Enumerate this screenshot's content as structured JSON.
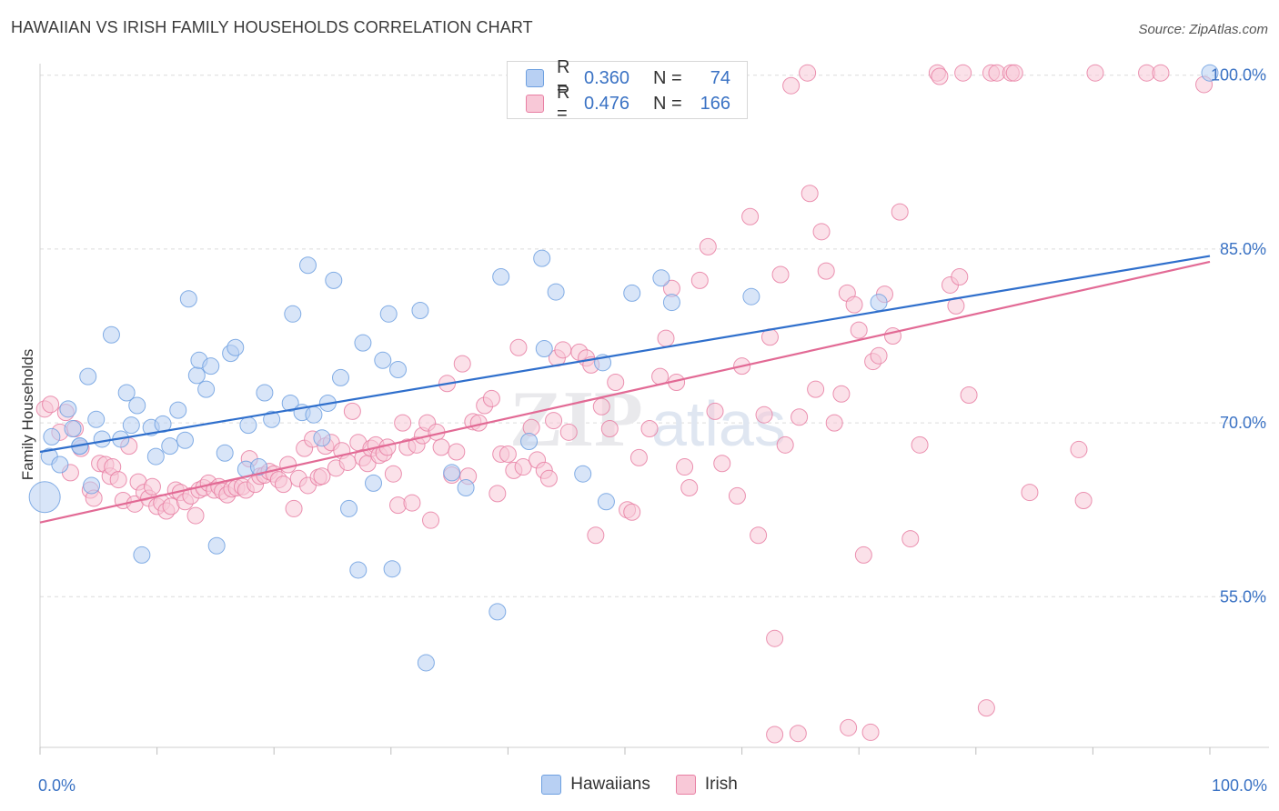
{
  "header": {
    "title": "HAWAIIAN VS IRISH FAMILY HOUSEHOLDS CORRELATION CHART",
    "source": "Source: ZipAtlas.com"
  },
  "watermark": {
    "part1": "ZIP",
    "part2": "atlas"
  },
  "legend": {
    "rows": [
      {
        "r_label": "R =",
        "r_value": "0.360",
        "n_label": "N =",
        "n_value": "74",
        "color": "#6ea0e0",
        "fill": "#b8d0f3"
      },
      {
        "r_label": "R =",
        "r_value": "0.476",
        "n_label": "N =",
        "n_value": "166",
        "color": "#e87fa3",
        "fill": "#f8c8d7"
      }
    ]
  },
  "bottom_legend": [
    {
      "label": "Hawaiians",
      "color": "#6ea0e0",
      "fill": "#b8d0f3"
    },
    {
      "label": "Irish",
      "color": "#e87fa3",
      "fill": "#f8c8d7"
    }
  ],
  "chart_data": {
    "type": "scatter",
    "title": "HAWAIIAN VS IRISH FAMILY HOUSEHOLDS CORRELATION CHART",
    "xlabel": "",
    "ylabel": "Family Households",
    "xlim": [
      0,
      100
    ],
    "ylim": [
      42,
      101
    ],
    "x_tick_labels": [
      "0.0%",
      "100.0%"
    ],
    "y_tick_labels": [
      "55.0%",
      "70.0%",
      "85.0%",
      "100.0%"
    ],
    "y_ticks": [
      55,
      70,
      85,
      100
    ],
    "grid": true,
    "legend_position": "top-center",
    "series": [
      {
        "name": "Hawaiians",
        "color": "#6ea0e0",
        "fill": "#b8d0f3",
        "trend": [
          [
            0,
            67.5
          ],
          [
            100,
            84.4
          ]
        ],
        "points": [
          [
            1,
            68.8
          ],
          [
            0.8,
            67.1
          ],
          [
            2.4,
            71.2
          ],
          [
            2.8,
            69.5
          ],
          [
            3.4,
            68.0
          ],
          [
            4.1,
            74.0
          ],
          [
            4.8,
            70.3
          ],
          [
            5.3,
            68.6
          ],
          [
            6.1,
            77.6
          ],
          [
            6.9,
            68.6
          ],
          [
            7.4,
            72.6
          ],
          [
            7.8,
            69.8
          ],
          [
            8.3,
            71.5
          ],
          [
            8.7,
            58.6
          ],
          [
            9.5,
            69.6
          ],
          [
            9.9,
            67.1
          ],
          [
            10.5,
            69.9
          ],
          [
            11.1,
            68.0
          ],
          [
            11.8,
            71.1
          ],
          [
            12.7,
            80.7
          ],
          [
            13.4,
            74.1
          ],
          [
            13.6,
            75.4
          ],
          [
            14.2,
            72.9
          ],
          [
            14.6,
            74.9
          ],
          [
            15.1,
            59.4
          ],
          [
            15.8,
            67.4
          ],
          [
            16.3,
            76.0
          ],
          [
            16.7,
            76.5
          ],
          [
            17.6,
            66.0
          ],
          [
            17.8,
            69.8
          ],
          [
            18.7,
            66.2
          ],
          [
            19.2,
            72.6
          ],
          [
            19.8,
            70.3
          ],
          [
            21.4,
            71.7
          ],
          [
            21.6,
            79.4
          ],
          [
            22.4,
            70.9
          ],
          [
            22.9,
            83.6
          ],
          [
            23.4,
            70.7
          ],
          [
            24.1,
            68.7
          ],
          [
            24.6,
            71.7
          ],
          [
            25.1,
            82.3
          ],
          [
            25.7,
            73.9
          ],
          [
            26.4,
            62.6
          ],
          [
            27.2,
            57.3
          ],
          [
            27.6,
            76.9
          ],
          [
            28.5,
            64.8
          ],
          [
            29.3,
            75.4
          ],
          [
            29.8,
            79.4
          ],
          [
            30.1,
            57.4
          ],
          [
            30.6,
            74.6
          ],
          [
            32.5,
            79.7
          ],
          [
            33.0,
            49.3
          ],
          [
            35.2,
            65.7
          ],
          [
            36.4,
            64.4
          ],
          [
            39.1,
            53.7
          ],
          [
            39.4,
            82.6
          ],
          [
            41.8,
            68.4
          ],
          [
            42.9,
            84.2
          ],
          [
            43.1,
            76.4
          ],
          [
            44.1,
            81.3
          ],
          [
            46.4,
            65.6
          ],
          [
            48.4,
            63.2
          ],
          [
            48.1,
            75.2
          ],
          [
            50.6,
            81.2
          ],
          [
            53.1,
            82.5
          ],
          [
            54.0,
            80.4
          ],
          [
            60.8,
            80.9
          ],
          [
            71.7,
            80.4
          ],
          [
            1.7,
            66.4
          ],
          [
            0.4,
            63.6
          ],
          [
            12.4,
            68.5
          ],
          [
            4.4,
            64.6
          ],
          [
            3.4,
            68.0
          ],
          [
            100,
            100.2
          ]
        ]
      },
      {
        "name": "Irish",
        "color": "#e87fa3",
        "fill": "#f8c8d7",
        "trend": [
          [
            0,
            61.4
          ],
          [
            100,
            83.9
          ]
        ],
        "points": [
          [
            0.4,
            71.2
          ],
          [
            0.9,
            71.6
          ],
          [
            1.7,
            69.2
          ],
          [
            2.2,
            70.9
          ],
          [
            2.6,
            65.7
          ],
          [
            3.0,
            69.5
          ],
          [
            3.5,
            67.8
          ],
          [
            4.3,
            64.2
          ],
          [
            4.6,
            63.5
          ],
          [
            5.1,
            66.5
          ],
          [
            5.6,
            66.4
          ],
          [
            6.0,
            65.4
          ],
          [
            6.2,
            66.2
          ],
          [
            6.7,
            65.1
          ],
          [
            7.1,
            63.3
          ],
          [
            7.6,
            68.0
          ],
          [
            8.1,
            63.0
          ],
          [
            8.4,
            64.9
          ],
          [
            8.9,
            64.0
          ],
          [
            9.3,
            63.5
          ],
          [
            9.6,
            64.5
          ],
          [
            10.0,
            62.8
          ],
          [
            10.4,
            63.1
          ],
          [
            10.8,
            62.4
          ],
          [
            11.2,
            62.8
          ],
          [
            11.6,
            64.2
          ],
          [
            12.0,
            64.0
          ],
          [
            12.4,
            63.2
          ],
          [
            12.9,
            63.7
          ],
          [
            13.3,
            62.0
          ],
          [
            13.6,
            64.2
          ],
          [
            14.0,
            64.4
          ],
          [
            14.4,
            64.8
          ],
          [
            14.9,
            64.2
          ],
          [
            15.3,
            64.5
          ],
          [
            15.6,
            64.1
          ],
          [
            16.0,
            63.8
          ],
          [
            16.4,
            64.3
          ],
          [
            16.8,
            64.4
          ],
          [
            17.3,
            64.5
          ],
          [
            17.6,
            64.2
          ],
          [
            17.9,
            66.9
          ],
          [
            18.4,
            64.7
          ],
          [
            18.8,
            65.4
          ],
          [
            19.2,
            65.5
          ],
          [
            19.6,
            65.8
          ],
          [
            20.0,
            65.6
          ],
          [
            20.4,
            65.1
          ],
          [
            20.8,
            64.7
          ],
          [
            21.2,
            66.4
          ],
          [
            21.7,
            62.6
          ],
          [
            22.1,
            65.2
          ],
          [
            22.6,
            67.8
          ],
          [
            22.9,
            64.6
          ],
          [
            23.3,
            68.6
          ],
          [
            23.8,
            65.3
          ],
          [
            24.1,
            65.4
          ],
          [
            24.4,
            68.0
          ],
          [
            24.9,
            68.3
          ],
          [
            25.3,
            66.1
          ],
          [
            25.8,
            67.6
          ],
          [
            26.3,
            66.6
          ],
          [
            26.7,
            71.0
          ],
          [
            27.2,
            68.3
          ],
          [
            27.6,
            67.0
          ],
          [
            28.0,
            66.5
          ],
          [
            28.3,
            67.8
          ],
          [
            28.7,
            68.1
          ],
          [
            29.0,
            67.2
          ],
          [
            29.4,
            67.4
          ],
          [
            29.7,
            67.9
          ],
          [
            30.2,
            65.6
          ],
          [
            30.6,
            62.9
          ],
          [
            31.0,
            70.0
          ],
          [
            31.4,
            67.9
          ],
          [
            31.8,
            63.1
          ],
          [
            32.2,
            68.1
          ],
          [
            32.7,
            68.9
          ],
          [
            33.1,
            70.0
          ],
          [
            33.4,
            61.6
          ],
          [
            33.9,
            69.2
          ],
          [
            34.3,
            67.9
          ],
          [
            34.8,
            73.4
          ],
          [
            35.2,
            65.5
          ],
          [
            35.6,
            67.5
          ],
          [
            36.1,
            75.1
          ],
          [
            36.6,
            65.4
          ],
          [
            37.0,
            70.1
          ],
          [
            37.5,
            70.0
          ],
          [
            38.0,
            71.5
          ],
          [
            38.6,
            72.1
          ],
          [
            39.1,
            63.9
          ],
          [
            39.4,
            67.3
          ],
          [
            40.0,
            67.3
          ],
          [
            40.5,
            65.9
          ],
          [
            40.9,
            76.5
          ],
          [
            41.3,
            66.2
          ],
          [
            42.0,
            69.6
          ],
          [
            42.5,
            66.8
          ],
          [
            43.1,
            65.9
          ],
          [
            43.5,
            65.2
          ],
          [
            43.9,
            70.2
          ],
          [
            44.2,
            75.6
          ],
          [
            44.7,
            76.3
          ],
          [
            45.2,
            69.2
          ],
          [
            46.1,
            76.1
          ],
          [
            46.7,
            75.6
          ],
          [
            47.1,
            75.0
          ],
          [
            47.5,
            60.3
          ],
          [
            48.0,
            71.4
          ],
          [
            48.7,
            69.5
          ],
          [
            49.2,
            73.5
          ],
          [
            50.2,
            62.5
          ],
          [
            50.6,
            62.3
          ],
          [
            51.2,
            67.0
          ],
          [
            52.1,
            69.5
          ],
          [
            53.0,
            74.0
          ],
          [
            53.5,
            77.3
          ],
          [
            54.0,
            81.6
          ],
          [
            54.4,
            73.5
          ],
          [
            55.1,
            66.2
          ],
          [
            55.5,
            64.4
          ],
          [
            56.4,
            82.3
          ],
          [
            57.1,
            85.2
          ],
          [
            57.7,
            71.0
          ],
          [
            58.3,
            66.5
          ],
          [
            59.6,
            63.7
          ],
          [
            60.0,
            74.9
          ],
          [
            60.7,
            87.8
          ],
          [
            61.4,
            60.3
          ],
          [
            61.9,
            70.7
          ],
          [
            62.4,
            77.4
          ],
          [
            62.8,
            51.4
          ],
          [
            63.3,
            82.8
          ],
          [
            63.7,
            68.1
          ],
          [
            64.2,
            99.1
          ],
          [
            64.9,
            70.5
          ],
          [
            65.6,
            100.2
          ],
          [
            65.8,
            89.8
          ],
          [
            66.3,
            72.9
          ],
          [
            66.8,
            86.5
          ],
          [
            67.2,
            83.1
          ],
          [
            67.9,
            70.0
          ],
          [
            68.5,
            72.5
          ],
          [
            69.0,
            81.2
          ],
          [
            69.6,
            80.2
          ],
          [
            70.0,
            78.0
          ],
          [
            70.4,
            58.6
          ],
          [
            71.2,
            75.3
          ],
          [
            71.7,
            75.8
          ],
          [
            72.2,
            81.1
          ],
          [
            72.9,
            77.5
          ],
          [
            73.5,
            88.2
          ],
          [
            74.4,
            60.0
          ],
          [
            75.2,
            68.1
          ],
          [
            76.7,
            100.2
          ],
          [
            76.9,
            99.9
          ],
          [
            77.8,
            81.9
          ],
          [
            78.3,
            80.1
          ],
          [
            78.6,
            82.6
          ],
          [
            78.9,
            100.2
          ],
          [
            79.4,
            72.4
          ],
          [
            80.9,
            45.4
          ],
          [
            81.3,
            100.2
          ],
          [
            81.8,
            100.2
          ],
          [
            83.0,
            100.2
          ],
          [
            83.3,
            100.2
          ],
          [
            84.6,
            64.0
          ],
          [
            88.8,
            67.7
          ],
          [
            89.2,
            63.3
          ],
          [
            90.2,
            100.2
          ],
          [
            94.6,
            100.2
          ],
          [
            95.8,
            100.2
          ],
          [
            99.5,
            99.2
          ],
          [
            62.8,
            43.1
          ],
          [
            64.8,
            43.2
          ],
          [
            69.1,
            43.7
          ],
          [
            71.0,
            43.3
          ]
        ]
      }
    ]
  }
}
